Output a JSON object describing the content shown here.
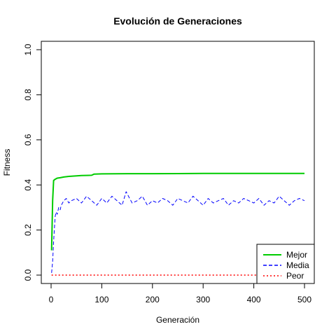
{
  "chart_data": {
    "type": "line",
    "title": "Evolución de Generaciones",
    "xlabel": "Generación",
    "ylabel": "Fitness",
    "xlim": [
      0,
      500
    ],
    "ylim": [
      0,
      1.0
    ],
    "x_ticks": [
      0,
      100,
      200,
      300,
      400,
      500
    ],
    "y_ticks": [
      0.0,
      0.2,
      0.4,
      0.6,
      0.8,
      1.0
    ],
    "x_tick_labels": [
      "0",
      "100",
      "200",
      "300",
      "400",
      "500"
    ],
    "y_tick_labels": [
      "0.0",
      "0.2",
      "0.4",
      "0.6",
      "0.8",
      "1.0"
    ],
    "grid": false,
    "legend_position": "bottom-right",
    "legend": [
      {
        "label": "Mejor",
        "color": "#00cc00",
        "dash": "solid"
      },
      {
        "label": "Media",
        "color": "#0000ff",
        "dash": "dashed"
      },
      {
        "label": "Peor",
        "color": "#ff0000",
        "dash": "dotted"
      }
    ],
    "series": [
      {
        "name": "Mejor",
        "color": "#00cc00",
        "x": [
          1,
          3,
          5,
          8,
          12,
          18,
          25,
          35,
          50,
          60,
          80,
          85,
          100,
          150,
          200,
          300,
          400,
          500
        ],
        "values": [
          0.11,
          0.33,
          0.42,
          0.425,
          0.43,
          0.432,
          0.435,
          0.438,
          0.44,
          0.442,
          0.443,
          0.448,
          0.449,
          0.45,
          0.45,
          0.451,
          0.451,
          0.451
        ]
      },
      {
        "name": "Media",
        "color": "#0000ff",
        "x": [
          1,
          3,
          5,
          8,
          10,
          12,
          15,
          18,
          20,
          25,
          30,
          35,
          40,
          50,
          60,
          70,
          80,
          90,
          100,
          110,
          120,
          130,
          140,
          148,
          155,
          160,
          170,
          180,
          190,
          200,
          210,
          220,
          230,
          240,
          250,
          260,
          270,
          280,
          290,
          300,
          310,
          320,
          330,
          340,
          350,
          360,
          370,
          380,
          390,
          400,
          410,
          420,
          430,
          440,
          450,
          460,
          470,
          480,
          490,
          500
        ],
        "values": [
          0.01,
          0.06,
          0.15,
          0.26,
          0.28,
          0.27,
          0.3,
          0.29,
          0.31,
          0.33,
          0.34,
          0.32,
          0.33,
          0.34,
          0.32,
          0.35,
          0.33,
          0.31,
          0.34,
          0.32,
          0.35,
          0.33,
          0.31,
          0.37,
          0.34,
          0.32,
          0.33,
          0.35,
          0.31,
          0.33,
          0.32,
          0.34,
          0.33,
          0.31,
          0.34,
          0.33,
          0.32,
          0.35,
          0.33,
          0.31,
          0.34,
          0.32,
          0.33,
          0.34,
          0.31,
          0.33,
          0.32,
          0.34,
          0.33,
          0.32,
          0.34,
          0.31,
          0.33,
          0.32,
          0.35,
          0.33,
          0.31,
          0.33,
          0.34,
          0.33
        ]
      },
      {
        "name": "Peor",
        "color": "#ff0000",
        "x": [
          1,
          500
        ],
        "values": [
          0.0,
          0.0
        ]
      }
    ]
  }
}
